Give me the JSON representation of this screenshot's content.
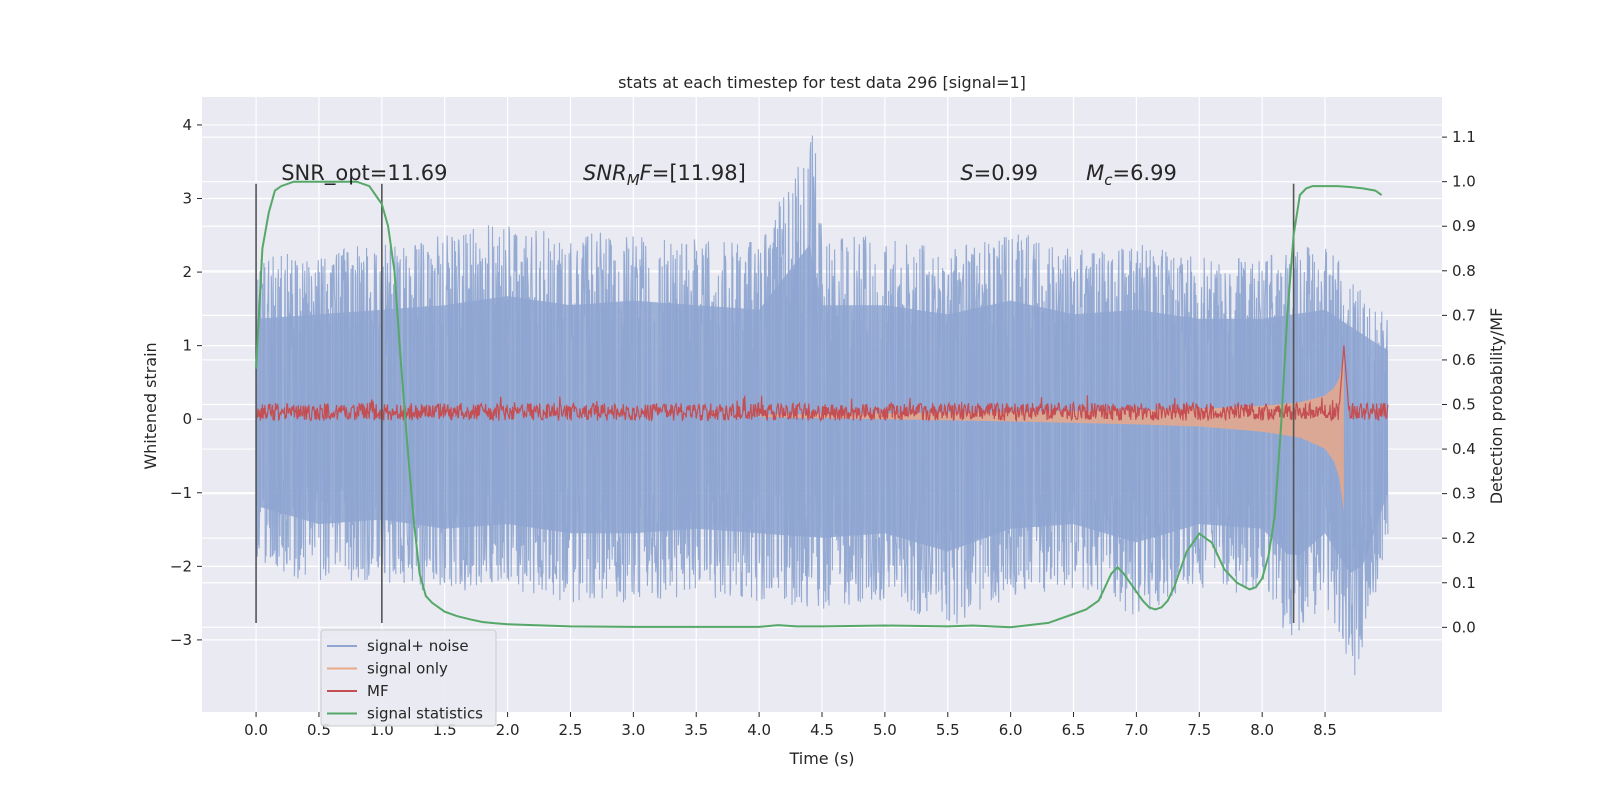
{
  "chart_data": {
    "type": "line",
    "title": "stats at each timestep for test data 296 [signal=1]",
    "xlabel": "Time (s)",
    "ylabel": "Whitened strain",
    "y2label": "Detection probability/MF",
    "xlim": [
      -0.43,
      9.43
    ],
    "ylim": [
      -3.98,
      4.38
    ],
    "y2lim": [
      -0.19,
      1.19
    ],
    "x_ticks": [
      0.0,
      0.5,
      1.0,
      1.5,
      2.0,
      2.5,
      3.0,
      3.5,
      4.0,
      4.5,
      5.0,
      5.5,
      6.0,
      6.5,
      7.0,
      7.5,
      8.0,
      8.5
    ],
    "x_tick_labels": [
      "0.0",
      "0.5",
      "1.0",
      "1.5",
      "2.0",
      "2.5",
      "3.0",
      "3.5",
      "4.0",
      "4.5",
      "5.0",
      "5.5",
      "6.0",
      "6.5",
      "7.0",
      "7.5",
      "8.0",
      "8.5"
    ],
    "y_ticks": [
      -3,
      -2,
      -1,
      0,
      1,
      2,
      3,
      4
    ],
    "y_tick_labels": [
      "−3",
      "−2",
      "−1",
      "0",
      "1",
      "2",
      "3",
      "4"
    ],
    "y2_ticks": [
      0.0,
      0.1,
      0.2,
      0.3,
      0.4,
      0.5,
      0.6,
      0.7,
      0.8,
      0.9,
      1.0,
      1.1
    ],
    "y2_tick_labels": [
      "0.0",
      "0.1",
      "0.2",
      "0.3",
      "0.4",
      "0.5",
      "0.6",
      "0.7",
      "0.8",
      "0.9",
      "1.0",
      "1.1"
    ],
    "grid": true,
    "legend_position": "lower-left",
    "annotations": [
      {
        "text": "SNR_opt=11.69",
        "x": 0.2,
        "y": 3.25
      },
      {
        "text": "SNR_MF=[11.98]",
        "x": 2.6,
        "y": 3.25
      },
      {
        "text": "S=0.99",
        "x": 5.6,
        "y": 3.25
      },
      {
        "text": "M_c=6.99",
        "x": 6.6,
        "y": 3.25
      }
    ],
    "vertical_lines": [
      {
        "x": 0.0,
        "y_range": [
          -2.77,
          3.2
        ]
      },
      {
        "x": 1.0,
        "y_range": [
          -2.77,
          3.2
        ]
      },
      {
        "x": 8.25,
        "y_range": [
          -2.77,
          3.2
        ]
      }
    ],
    "series": [
      {
        "name": "signal+ noise",
        "axis": "left",
        "color": "#8fa6d1",
        "x_range": [
          0.0,
          9.0
        ],
        "envelope_upper": {
          "x": [
            0.0,
            0.5,
            1.0,
            1.5,
            2.0,
            2.5,
            3.0,
            3.5,
            4.0,
            4.45,
            4.5,
            5.0,
            5.5,
            6.0,
            6.5,
            7.0,
            7.5,
            8.0,
            8.5,
            9.0
          ],
          "y": [
            2.2,
            2.3,
            2.4,
            2.5,
            2.7,
            2.5,
            2.6,
            2.5,
            2.4,
            4.0,
            2.5,
            2.5,
            2.3,
            2.6,
            2.3,
            2.4,
            2.2,
            2.2,
            2.4,
            1.5
          ]
        },
        "envelope_lower": {
          "x": [
            0.0,
            0.5,
            1.0,
            1.5,
            2.0,
            2.5,
            3.0,
            3.5,
            4.0,
            4.5,
            5.0,
            5.5,
            6.0,
            6.5,
            7.0,
            7.5,
            8.0,
            8.25,
            8.5,
            8.75,
            9.0
          ],
          "y": [
            -1.9,
            -2.3,
            -2.2,
            -2.4,
            -2.3,
            -2.5,
            -2.5,
            -2.4,
            -2.5,
            -2.6,
            -2.5,
            -2.9,
            -2.4,
            -2.3,
            -2.7,
            -2.3,
            -2.4,
            -3.1,
            -2.5,
            -3.6,
            -1.6
          ]
        }
      },
      {
        "name": "signal only",
        "axis": "left",
        "color": "#e8a88a",
        "x_range": [
          4.0,
          8.65
        ],
        "amplitude": {
          "x": [
            4.0,
            5.0,
            6.0,
            7.0,
            7.5,
            8.0,
            8.3,
            8.5,
            8.6,
            8.65
          ],
          "y": [
            0.02,
            0.05,
            0.08,
            0.12,
            0.15,
            0.22,
            0.3,
            0.45,
            0.7,
            1.3
          ]
        }
      },
      {
        "name": "MF",
        "axis": "left",
        "color": "#c44e52",
        "x_range": [
          0.0,
          9.0
        ],
        "baseline": 0.1,
        "band": 0.12,
        "peak": {
          "x": 8.65,
          "y": 1.0
        }
      },
      {
        "name": "signal statistics",
        "axis": "right",
        "color": "#55a868",
        "x": [
          0.0,
          0.05,
          0.1,
          0.15,
          0.2,
          0.3,
          0.4,
          0.5,
          0.6,
          0.7,
          0.8,
          0.9,
          0.95,
          1.0,
          1.05,
          1.1,
          1.15,
          1.2,
          1.25,
          1.3,
          1.35,
          1.4,
          1.5,
          1.6,
          1.7,
          1.8,
          1.9,
          2.0,
          2.2,
          2.5,
          3.0,
          3.5,
          4.0,
          4.15,
          4.3,
          4.5,
          5.0,
          5.5,
          5.7,
          6.0,
          6.3,
          6.5,
          6.6,
          6.7,
          6.75,
          6.8,
          6.85,
          6.9,
          7.0,
          7.05,
          7.1,
          7.15,
          7.2,
          7.25,
          7.3,
          7.35,
          7.4,
          7.5,
          7.6,
          7.7,
          7.8,
          7.9,
          7.95,
          8.0,
          8.05,
          8.1,
          8.15,
          8.2,
          8.25,
          8.3,
          8.35,
          8.4,
          8.5,
          8.6,
          8.7,
          8.8,
          8.9,
          8.95
        ],
        "y": [
          0.58,
          0.85,
          0.93,
          0.98,
          0.99,
          1.0,
          1.0,
          1.0,
          1.0,
          1.0,
          1.0,
          0.99,
          0.97,
          0.95,
          0.9,
          0.8,
          0.6,
          0.42,
          0.25,
          0.12,
          0.07,
          0.055,
          0.035,
          0.025,
          0.018,
          0.012,
          0.009,
          0.007,
          0.005,
          0.002,
          0.001,
          0.001,
          0.001,
          0.005,
          0.002,
          0.002,
          0.004,
          0.002,
          0.004,
          0.0,
          0.01,
          0.03,
          0.04,
          0.06,
          0.09,
          0.12,
          0.135,
          0.12,
          0.08,
          0.06,
          0.045,
          0.04,
          0.045,
          0.06,
          0.09,
          0.13,
          0.17,
          0.21,
          0.19,
          0.13,
          0.1,
          0.085,
          0.09,
          0.11,
          0.16,
          0.25,
          0.45,
          0.7,
          0.88,
          0.97,
          0.985,
          0.99,
          0.99,
          0.99,
          0.988,
          0.985,
          0.98,
          0.97
        ]
      }
    ]
  }
}
